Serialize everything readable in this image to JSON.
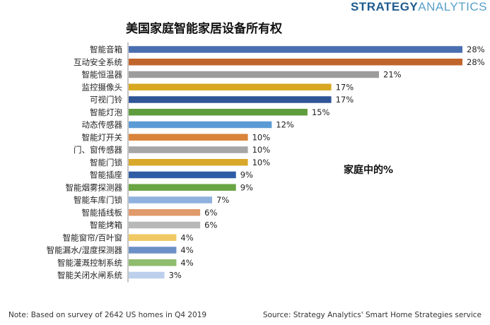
{
  "header": {
    "brand_strong": "STRATEGY",
    "brand_light": "ANALYTICS",
    "title": "美国家庭智能家居设备所有权"
  },
  "chart_data": {
    "type": "bar",
    "orientation": "horizontal",
    "title": "美国家庭智能家居设备所有权",
    "annotation": "家庭中的%",
    "value_suffix": "%",
    "xlim": [
      0,
      28
    ],
    "grid": false,
    "categories": [
      "智能音箱",
      "互动安全系统",
      "智能恒温器",
      "监控摄像头",
      "可视门铃",
      "智能灯泡",
      "动态传感器",
      "智能灯开关",
      "门、窗传感器",
      "智能门锁",
      "智能插座",
      "智能烟雾探测器",
      "智能车库门锁",
      "智能插线板",
      "智能烤箱",
      "智能窗帘/百叶窗",
      "智能漏水/湿度探测器",
      "智能灌溉控制系统",
      "智能关闭水闸系统"
    ],
    "values": [
      28,
      28,
      21,
      17,
      17,
      15,
      12,
      10,
      10,
      10,
      9,
      9,
      7,
      6,
      6,
      4,
      4,
      4,
      3
    ],
    "colors": [
      "#4a6fb1",
      "#c0652b",
      "#9c9c9c",
      "#d8a823",
      "#2f5597",
      "#5f9c3d",
      "#5b9bd5",
      "#d9843a",
      "#a6a6a6",
      "#d9a82a",
      "#2e5da6",
      "#6aa544",
      "#8fb1de",
      "#e09a6b",
      "#b8b8b8",
      "#f0c964",
      "#6d8fc7",
      "#8fbc6d",
      "#bcd0ec"
    ]
  },
  "footer": {
    "note": "Note: Based on survey of 2642 US homes in Q4 2019",
    "source": "Source: Strategy Analytics' Smart Home Strategies service"
  }
}
